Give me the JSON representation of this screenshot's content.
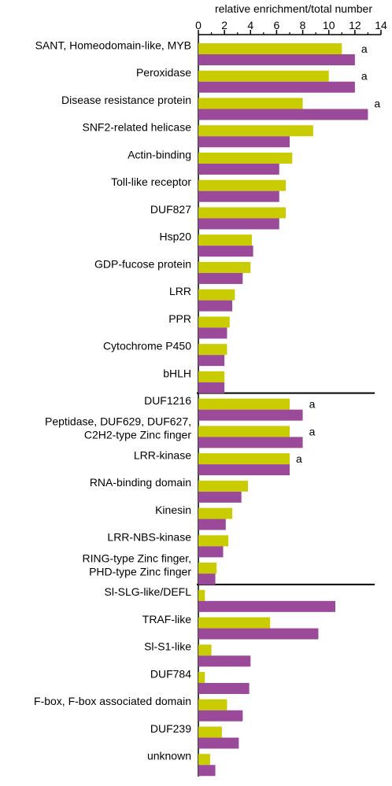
{
  "chart_data": {
    "type": "bar",
    "orientation": "horizontal",
    "xlabel": "relative enrichment/total number",
    "xlim": [
      0,
      14
    ],
    "xticks": [
      0,
      2,
      4,
      6,
      8,
      10,
      12,
      14
    ],
    "grid": false,
    "legend": "none",
    "colors": [
      "#c9cc00",
      "#9b4a9a"
    ],
    "groups": [
      {
        "categories": [
          {
            "label": [
              "SANT, Homeodomain-like, MYB"
            ],
            "values": [
              11.0,
              12.0
            ],
            "annotation": "a"
          },
          {
            "label": [
              "Peroxidase"
            ],
            "values": [
              10.0,
              12.0
            ],
            "annotation": "a"
          },
          {
            "label": [
              "Disease resistance protein"
            ],
            "values": [
              8.0,
              13.0
            ],
            "annotation": "a"
          },
          {
            "label": [
              "SNF2-related helicase"
            ],
            "values": [
              8.8,
              7.0
            ],
            "annotation": ""
          },
          {
            "label": [
              "Actin-binding"
            ],
            "values": [
              7.2,
              6.2
            ],
            "annotation": ""
          },
          {
            "label": [
              "Toll-like receptor"
            ],
            "values": [
              6.7,
              6.2
            ],
            "annotation": ""
          },
          {
            "label": [
              "DUF827"
            ],
            "values": [
              6.7,
              6.2
            ],
            "annotation": ""
          },
          {
            "label": [
              "Hsp20"
            ],
            "values": [
              4.1,
              4.2
            ],
            "annotation": ""
          },
          {
            "label": [
              "GDP-fucose protein"
            ],
            "values": [
              4.0,
              3.4
            ],
            "annotation": ""
          },
          {
            "label": [
              "LRR"
            ],
            "values": [
              2.8,
              2.6
            ],
            "annotation": ""
          },
          {
            "label": [
              "PPR"
            ],
            "values": [
              2.4,
              2.2
            ],
            "annotation": ""
          },
          {
            "label": [
              "Cytochrome P450"
            ],
            "values": [
              2.2,
              2.0
            ],
            "annotation": ""
          },
          {
            "label": [
              "bHLH"
            ],
            "values": [
              2.0,
              2.0
            ],
            "annotation": ""
          }
        ]
      },
      {
        "categories": [
          {
            "label": [
              "DUF1216"
            ],
            "values": [
              7.0,
              8.0
            ],
            "annotation": "a"
          },
          {
            "label": [
              "Peptidase, DUF629, DUF627,",
              "C2H2-type Zinc finger"
            ],
            "values": [
              7.0,
              8.0
            ],
            "annotation": "a"
          },
          {
            "label": [
              "LRR-kinase"
            ],
            "values": [
              7.0,
              7.0
            ],
            "annotation": "a"
          },
          {
            "label": [
              "RNA-binding domain"
            ],
            "values": [
              3.8,
              3.3
            ],
            "annotation": ""
          },
          {
            "label": [
              "Kinesin"
            ],
            "values": [
              2.6,
              2.1
            ],
            "annotation": ""
          },
          {
            "label": [
              "LRR-NBS-kinase"
            ],
            "values": [
              2.3,
              1.9
            ],
            "annotation": ""
          },
          {
            "label": [
              "RING-type Zinc finger,",
              "PHD-type Zinc finger"
            ],
            "values": [
              1.4,
              1.3
            ],
            "annotation": ""
          }
        ]
      },
      {
        "categories": [
          {
            "label": [
              "Sl-SLG-like/DEFL"
            ],
            "values": [
              0.5,
              10.5
            ],
            "annotation": ""
          },
          {
            "label": [
              "TRAF-like"
            ],
            "values": [
              5.5,
              9.2
            ],
            "annotation": ""
          },
          {
            "label": [
              "Sl-S1-like"
            ],
            "values": [
              1.0,
              4.0
            ],
            "annotation": ""
          },
          {
            "label": [
              "DUF784"
            ],
            "values": [
              0.5,
              3.9
            ],
            "annotation": ""
          },
          {
            "label": [
              "F-box, F-box associated domain"
            ],
            "values": [
              2.2,
              3.4
            ],
            "annotation": ""
          },
          {
            "label": [
              "DUF239"
            ],
            "values": [
              1.8,
              3.1
            ],
            "annotation": ""
          },
          {
            "label": [
              "unknown"
            ],
            "values": [
              0.9,
              1.3
            ],
            "annotation": ""
          }
        ]
      }
    ]
  }
}
